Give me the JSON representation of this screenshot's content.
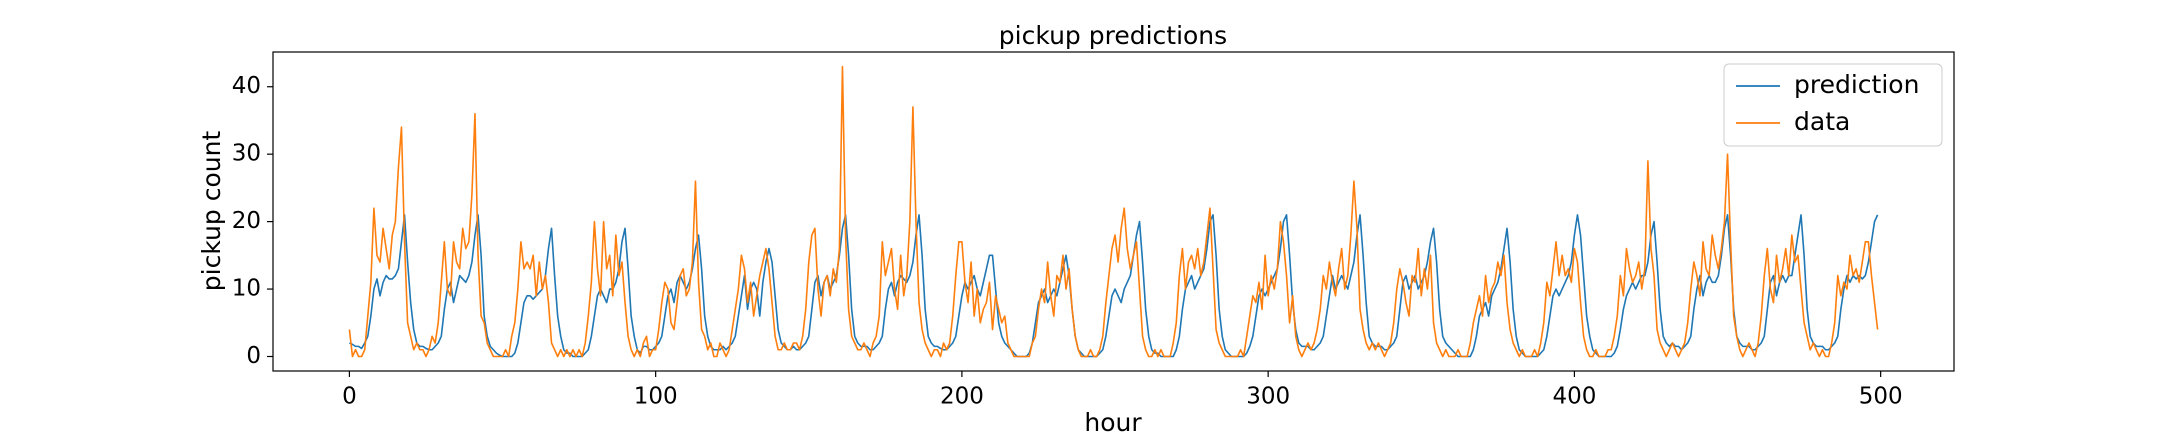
{
  "chart_data": {
    "type": "line",
    "title": "pickup predictions",
    "x_label": "hour",
    "y_label": "pickup count",
    "xlim": [
      -24.95,
      523.95
    ],
    "ylim": [
      -2.15,
      45.15
    ],
    "xticks": [
      0,
      100,
      200,
      300,
      400,
      500
    ],
    "yticks": [
      0,
      10,
      20,
      30,
      40
    ],
    "legend": "upper right",
    "x": [
      0,
      1,
      2,
      3,
      4,
      5,
      6,
      7,
      8,
      9,
      10,
      11,
      12,
      13,
      14,
      15,
      16,
      17,
      18,
      19,
      20,
      21,
      22,
      23,
      24,
      25,
      26,
      27,
      28,
      29,
      30,
      31,
      32,
      33,
      34,
      35,
      36,
      37,
      38,
      39,
      40,
      41,
      42,
      43,
      44,
      45,
      46,
      47,
      48,
      49,
      50,
      51,
      52,
      53,
      54,
      55,
      56,
      57,
      58,
      59,
      60,
      61,
      62,
      63,
      64,
      65,
      66,
      67,
      68,
      69,
      70,
      71,
      72,
      73,
      74,
      75,
      76,
      77,
      78,
      79,
      80,
      81,
      82,
      83,
      84,
      85,
      86,
      87,
      88,
      89,
      90,
      91,
      92,
      93,
      94,
      95,
      96,
      97,
      98,
      99,
      100,
      101,
      102,
      103,
      104,
      105,
      106,
      107,
      108,
      109,
      110,
      111,
      112,
      113,
      114,
      115,
      116,
      117,
      118,
      119,
      120,
      121,
      122,
      123,
      124,
      125,
      126,
      127,
      128,
      129,
      130,
      131,
      132,
      133,
      134,
      135,
      136,
      137,
      138,
      139,
      140,
      141,
      142,
      143,
      144,
      145,
      146,
      147,
      148,
      149,
      150,
      151,
      152,
      153,
      154,
      155,
      156,
      157,
      158,
      159,
      160,
      161,
      162,
      163,
      164,
      165,
      166,
      167,
      168,
      169,
      170,
      171,
      172,
      173,
      174,
      175,
      176,
      177,
      178,
      179,
      180,
      181,
      182,
      183,
      184,
      185,
      186,
      187,
      188,
      189,
      190,
      191,
      192,
      193,
      194,
      195,
      196,
      197,
      198,
      199,
      200,
      201,
      202,
      203,
      204,
      205,
      206,
      207,
      208,
      209,
      210,
      211,
      212,
      213,
      214,
      215,
      216,
      217,
      218,
      219,
      220,
      221,
      222,
      223,
      224,
      225,
      226,
      227,
      228,
      229,
      230,
      231,
      232,
      233,
      234,
      235,
      236,
      237,
      238,
      239,
      240,
      241,
      242,
      243,
      244,
      245,
      246,
      247,
      248,
      249,
      250,
      251,
      252,
      253,
      254,
      255,
      256,
      257,
      258,
      259,
      260,
      261,
      262,
      263,
      264,
      265,
      266,
      267,
      268,
      269,
      270,
      271,
      272,
      273,
      274,
      275,
      276,
      277,
      278,
      279,
      280,
      281,
      282,
      283,
      284,
      285,
      286,
      287,
      288,
      289,
      290,
      291,
      292,
      293,
      294,
      295,
      296,
      297,
      298,
      299,
      300,
      301,
      302,
      303,
      304,
      305,
      306,
      307,
      308,
      309,
      310,
      311,
      312,
      313,
      314,
      315,
      316,
      317,
      318,
      319,
      320,
      321,
      322,
      323,
      324,
      325,
      326,
      327,
      328,
      329,
      330,
      331,
      332,
      333,
      334,
      335,
      336,
      337,
      338,
      339,
      340,
      341,
      342,
      343,
      344,
      345,
      346,
      347,
      348,
      349,
      350,
      351,
      352,
      353,
      354,
      355,
      356,
      357,
      358,
      359,
      360,
      361,
      362,
      363,
      364,
      365,
      366,
      367,
      368,
      369,
      370,
      371,
      372,
      373,
      374,
      375,
      376,
      377,
      378,
      379,
      380,
      381,
      382,
      383,
      384,
      385,
      386,
      387,
      388,
      389,
      390,
      391,
      392,
      393,
      394,
      395,
      396,
      397,
      398,
      399,
      400,
      401,
      402,
      403,
      404,
      405,
      406,
      407,
      408,
      409,
      410,
      411,
      412,
      413,
      414,
      415,
      416,
      417,
      418,
      419,
      420,
      421,
      422,
      423,
      424,
      425,
      426,
      427,
      428,
      429,
      430,
      431,
      432,
      433,
      434,
      435,
      436,
      437,
      438,
      439,
      440,
      441,
      442,
      443,
      444,
      445,
      446,
      447,
      448,
      449,
      450,
      451,
      452,
      453,
      454,
      455,
      456,
      457,
      458,
      459,
      460,
      461,
      462,
      463,
      464,
      465,
      466,
      467,
      468,
      469,
      470,
      471,
      472,
      473,
      474,
      475,
      476,
      477,
      478,
      479,
      480,
      481,
      482,
      483,
      484,
      485,
      486,
      487,
      488,
      489,
      490,
      491,
      492,
      493,
      494,
      495,
      496,
      497,
      498,
      499
    ],
    "series": [
      {
        "name": "prediction",
        "color": "#1f77b4",
        "values": [
          2,
          1.8,
          1.5,
          1.5,
          1.2,
          2,
          3,
          6,
          10,
          11.5,
          9,
          11,
          12,
          11.5,
          11.5,
          12,
          13,
          17,
          21,
          14,
          8,
          4,
          2,
          1.5,
          1.5,
          1.2,
          1,
          1,
          1.5,
          2,
          3,
          7,
          10,
          11,
          8,
          10,
          12,
          11.5,
          11,
          12,
          14,
          18,
          21,
          15,
          6,
          3,
          1.5,
          1,
          0.5,
          0.2,
          0,
          0,
          0,
          0,
          0.5,
          2,
          5,
          8,
          9,
          9,
          8.5,
          9,
          9.5,
          10,
          12,
          16,
          19,
          12,
          6,
          3,
          1,
          0.5,
          0.5,
          0,
          0,
          0,
          0,
          0.5,
          1,
          3,
          6,
          9,
          10,
          9,
          8,
          10,
          10,
          11,
          13,
          17,
          19,
          13,
          6,
          3,
          1,
          0.5,
          1.5,
          1.5,
          1,
          1,
          1.5,
          2,
          3,
          6,
          9,
          10,
          8,
          11,
          12,
          11,
          10,
          11,
          13,
          16,
          18,
          13,
          6,
          3,
          1.5,
          1,
          1,
          1,
          1.5,
          1,
          1.5,
          2,
          3,
          6,
          9,
          12,
          7,
          10,
          11,
          10,
          6,
          11,
          14,
          16,
          14,
          9,
          4,
          2,
          1.5,
          1,
          1,
          1.5,
          1,
          1,
          1.5,
          2,
          3,
          7,
          11,
          12,
          9,
          11,
          12,
          10,
          11,
          12,
          15,
          19,
          21,
          15,
          7,
          3,
          2,
          1.5,
          1.5,
          1.5,
          1,
          1,
          1.5,
          2,
          3,
          7,
          10,
          11,
          9,
          11,
          12,
          11.5,
          11,
          12,
          14,
          18,
          21,
          15,
          7,
          3,
          2,
          1.5,
          1.5,
          1.2,
          1,
          1,
          1.5,
          2,
          3,
          6,
          9,
          11,
          10,
          11,
          12,
          10,
          9,
          11,
          13,
          15,
          15,
          10,
          5,
          3,
          2,
          1.5,
          1,
          0.5,
          0,
          0,
          0,
          0,
          0.5,
          2,
          5,
          8,
          9,
          10,
          8,
          9,
          10,
          9,
          11,
          13,
          15,
          12,
          7,
          3,
          1,
          0.5,
          0,
          0,
          0,
          0,
          0,
          0.5,
          1,
          3,
          6,
          9,
          10,
          9,
          8,
          10,
          11,
          12,
          15,
          18,
          20,
          14,
          7,
          3,
          1,
          0.5,
          0.5,
          0,
          0,
          0,
          0,
          0,
          1,
          3,
          7,
          10,
          11,
          12,
          10,
          11,
          12,
          13,
          16,
          20,
          21,
          15,
          7,
          3,
          1,
          0.5,
          0,
          0,
          0,
          0,
          0,
          0.5,
          1.5,
          3,
          6,
          9,
          10,
          9,
          10,
          11,
          12,
          13,
          16,
          20,
          21,
          15,
          8,
          4,
          2,
          1.5,
          1.5,
          1.5,
          1,
          1,
          1.5,
          2,
          3,
          6,
          9,
          12,
          10,
          11,
          12,
          11,
          10,
          12,
          14,
          18,
          21,
          15,
          8,
          3,
          2,
          1.5,
          1.5,
          1.5,
          1,
          1,
          1.5,
          2,
          3,
          7,
          11,
          12,
          10,
          11,
          12,
          10,
          11,
          12,
          14,
          17,
          19,
          14,
          7,
          3,
          2,
          1.5,
          1,
          0.5,
          0,
          0,
          0,
          0,
          0,
          1,
          3,
          6,
          7,
          8,
          6,
          9,
          10,
          11,
          13,
          16,
          19,
          14,
          7,
          3,
          1,
          0.5,
          0,
          0,
          0,
          0,
          0,
          0.5,
          1,
          3,
          6,
          9,
          10,
          9,
          10,
          11,
          12,
          14,
          18,
          21,
          18,
          12,
          6,
          3,
          1,
          0.5,
          0,
          0,
          0,
          0,
          0,
          0.5,
          1.5,
          4,
          7,
          9,
          10,
          11,
          10,
          11,
          12,
          12,
          14,
          18,
          20,
          14,
          7,
          3,
          2,
          1.5,
          2,
          1.5,
          1.5,
          1,
          1.5,
          2,
          3,
          7,
          10,
          12,
          9,
          11,
          12,
          11,
          11,
          12,
          15,
          19,
          21,
          15,
          7,
          3,
          2,
          1.5,
          1.5,
          1.5,
          1,
          1,
          1.5,
          2,
          3,
          7,
          11,
          12,
          9,
          11,
          12,
          11,
          12,
          12,
          15,
          18,
          21,
          15,
          7,
          3,
          2,
          1.5,
          1.5,
          1.5,
          1,
          1,
          1.5,
          2,
          3,
          7,
          10,
          12,
          11,
          12,
          11.5,
          12,
          11.5,
          12,
          14,
          17,
          20,
          21
        ]
      },
      {
        "name": "data",
        "color": "#ff7f0e",
        "values": [
          4,
          0,
          1,
          0,
          0,
          1,
          6,
          11,
          22,
          15,
          14,
          19,
          16,
          13,
          18,
          20,
          28,
          34,
          17,
          5,
          3,
          1,
          2,
          1,
          1,
          0,
          1,
          3,
          2,
          5,
          11,
          17,
          10,
          9,
          17,
          14,
          13,
          19,
          16,
          17,
          24,
          36,
          15,
          6,
          5,
          2,
          1,
          0,
          0,
          0,
          0,
          1,
          0,
          3,
          5,
          10,
          17,
          13,
          14,
          13,
          15,
          9,
          14,
          10,
          12,
          8,
          2,
          1,
          0,
          1,
          0,
          1,
          0,
          1,
          0,
          1,
          0,
          2,
          6,
          11,
          20,
          13,
          9,
          20,
          13,
          15,
          9,
          18,
          12,
          14,
          8,
          3,
          1,
          0,
          1,
          0,
          2,
          3,
          0,
          1,
          1,
          4,
          8,
          11,
          10,
          5,
          4,
          8,
          12,
          13,
          9,
          10,
          14,
          26,
          11,
          4,
          3,
          1,
          2,
          0,
          0,
          2,
          1,
          0,
          1,
          4,
          7,
          10,
          15,
          13,
          8,
          11,
          6,
          9,
          12,
          14,
          16,
          13,
          8,
          3,
          1,
          1,
          2,
          1,
          1,
          2,
          2,
          1,
          3,
          7,
          14,
          18,
          19,
          10,
          6,
          11,
          12,
          9,
          13,
          11,
          16,
          43,
          18,
          7,
          3,
          2,
          1,
          1,
          2,
          1,
          0,
          2,
          3,
          6,
          17,
          12,
          14,
          16,
          10,
          7,
          15,
          9,
          12,
          20,
          37,
          20,
          8,
          4,
          2,
          1,
          0,
          1,
          1,
          0,
          2,
          1,
          2,
          6,
          12,
          17,
          17,
          11,
          8,
          14,
          6,
          10,
          5,
          7,
          8,
          11,
          4,
          9,
          7,
          5,
          6,
          2,
          1,
          0,
          0,
          0,
          0,
          0,
          0,
          2,
          3,
          7,
          10,
          8,
          14,
          9,
          6,
          12,
          11,
          15,
          10,
          13,
          7,
          3,
          1,
          0,
          0,
          0,
          1,
          0,
          0,
          1,
          3,
          8,
          12,
          16,
          18,
          14,
          19,
          22,
          16,
          13,
          15,
          17,
          10,
          3,
          1,
          0,
          0,
          1,
          0,
          1,
          0,
          0,
          0,
          2,
          5,
          12,
          16,
          10,
          14,
          15,
          13,
          16,
          12,
          14,
          18,
          22,
          13,
          4,
          2,
          1,
          0,
          0,
          0,
          0,
          0,
          1,
          0,
          3,
          6,
          9,
          8,
          11,
          7,
          15,
          9,
          12,
          10,
          13,
          20,
          17,
          12,
          5,
          9,
          3,
          1,
          0,
          1,
          2,
          1,
          2,
          4,
          7,
          12,
          10,
          14,
          11,
          9,
          13,
          16,
          10,
          12,
          18,
          26,
          19,
          7,
          4,
          2,
          1,
          2,
          1,
          2,
          1,
          0,
          1,
          2,
          5,
          10,
          13,
          11,
          8,
          6,
          12,
          11,
          16,
          9,
          13,
          10,
          15,
          5,
          2,
          1,
          0,
          1,
          0,
          0,
          0,
          1,
          0,
          0,
          0,
          2,
          5,
          7,
          9,
          6,
          12,
          8,
          10,
          11,
          14,
          12,
          15,
          8,
          4,
          2,
          1,
          0,
          1,
          0,
          0,
          0,
          1,
          0,
          2,
          5,
          11,
          9,
          13,
          17,
          12,
          15,
          12,
          13,
          11,
          16,
          14,
          8,
          3,
          1,
          0,
          0,
          1,
          0,
          0,
          0,
          1,
          1,
          3,
          6,
          12,
          9,
          16,
          13,
          11,
          12,
          14,
          10,
          13,
          29,
          16,
          12,
          4,
          2,
          1,
          0,
          1,
          2,
          1,
          0,
          1,
          2,
          5,
          10,
          14,
          12,
          9,
          17,
          13,
          12,
          18,
          15,
          13,
          16,
          20,
          30,
          17,
          6,
          3,
          1,
          0,
          1,
          2,
          1,
          0,
          2,
          6,
          12,
          16,
          10,
          8,
          15,
          11,
          13,
          16,
          12,
          18,
          14,
          15,
          10,
          5,
          3,
          1,
          2,
          1,
          0,
          1,
          0,
          0,
          2,
          5,
          12,
          9,
          11,
          10,
          15,
          12,
          13,
          11,
          14,
          17,
          17,
          12,
          8,
          4
        ]
      }
    ]
  }
}
